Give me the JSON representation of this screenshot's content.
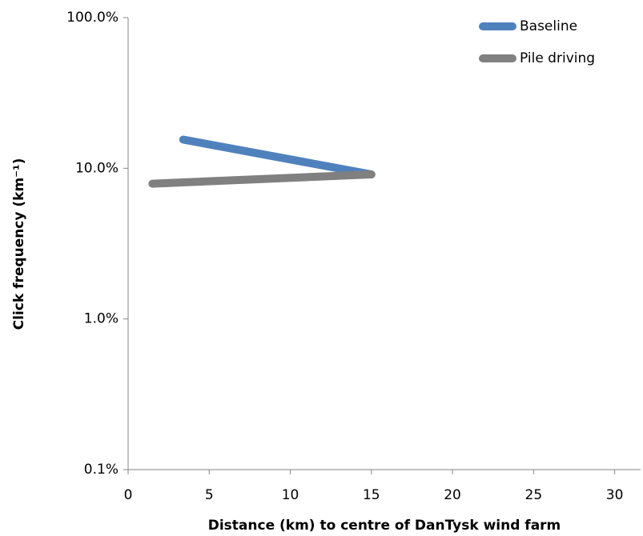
{
  "chart_data": {
    "type": "line",
    "x_label": "Distance (km) to centre of DanTysk wind farm",
    "y_label": "Click frequency (km⁻¹)",
    "y_scale": "log",
    "xlim": [
      0,
      31.6
    ],
    "xticks": [
      0,
      5,
      10,
      15,
      20,
      25,
      30
    ],
    "ylim": [
      0.1,
      100
    ],
    "yticks": [
      {
        "value": 0.1,
        "label": "0.1%"
      },
      {
        "value": 1,
        "label": "1.0%"
      },
      {
        "value": 10,
        "label": "10.0%"
      },
      {
        "value": 100,
        "label": "100.0%"
      }
    ],
    "legend": "top-right",
    "series": [
      {
        "name": "Baseline",
        "color": "#4f81bd",
        "x": [
          3.4,
          15
        ],
        "values": [
          15.5,
          9.1
        ]
      },
      {
        "name": "Pile driving",
        "color": "#808080",
        "x": [
          1.5,
          15
        ],
        "values": [
          7.9,
          9.1
        ]
      }
    ]
  }
}
